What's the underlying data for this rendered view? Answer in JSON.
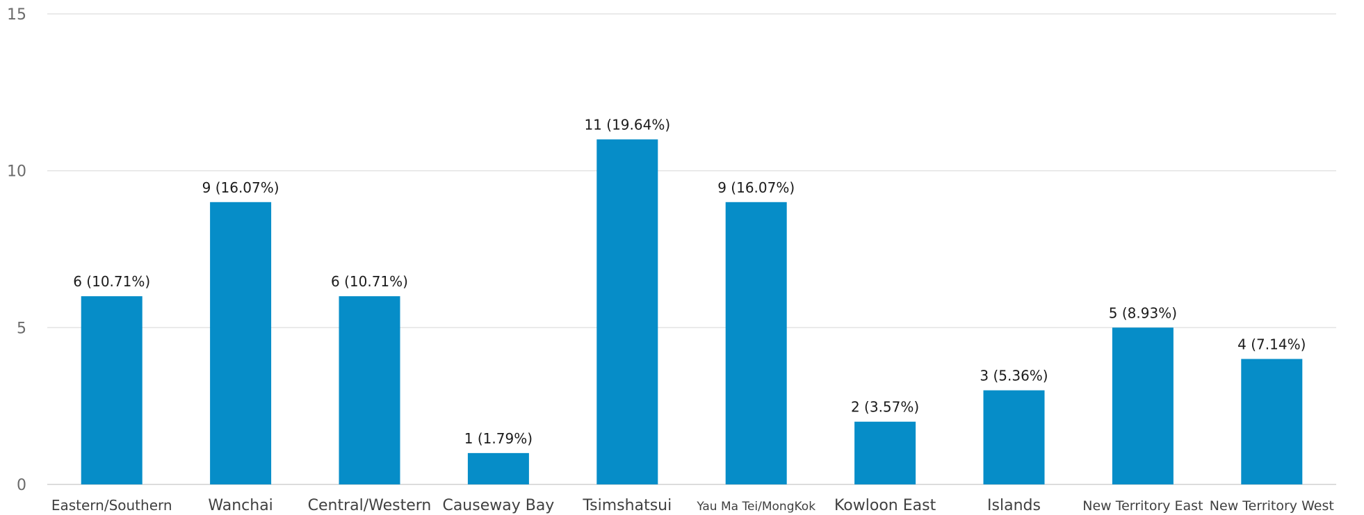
{
  "chart_data": {
    "type": "bar",
    "title": "",
    "xlabel": "",
    "ylabel": "",
    "categories": [
      "Eastern/Southern",
      "Wanchai",
      "Central/Western",
      "Causeway Bay",
      "Tsimshatsui",
      "Yau Ma Tei/MongKok",
      "Kowloon East",
      "Islands",
      "New Territory East",
      "New Territory West"
    ],
    "values": [
      6,
      9,
      6,
      1,
      11,
      9,
      2,
      3,
      5,
      4
    ],
    "data_labels": [
      "6 (10.71%)",
      "9 (16.07%)",
      "6 (10.71%)",
      "1 (1.79%)",
      "11 (19.64%)",
      "9 (16.07%)",
      "2 (3.57%)",
      "3 (5.36%)",
      "5 (8.93%)",
      "4 (7.14%)"
    ],
    "ylim": [
      0,
      15
    ],
    "yticks": [
      0,
      5,
      10,
      15
    ],
    "grid": true,
    "legend": "none",
    "bar_color": "#068dc8"
  }
}
